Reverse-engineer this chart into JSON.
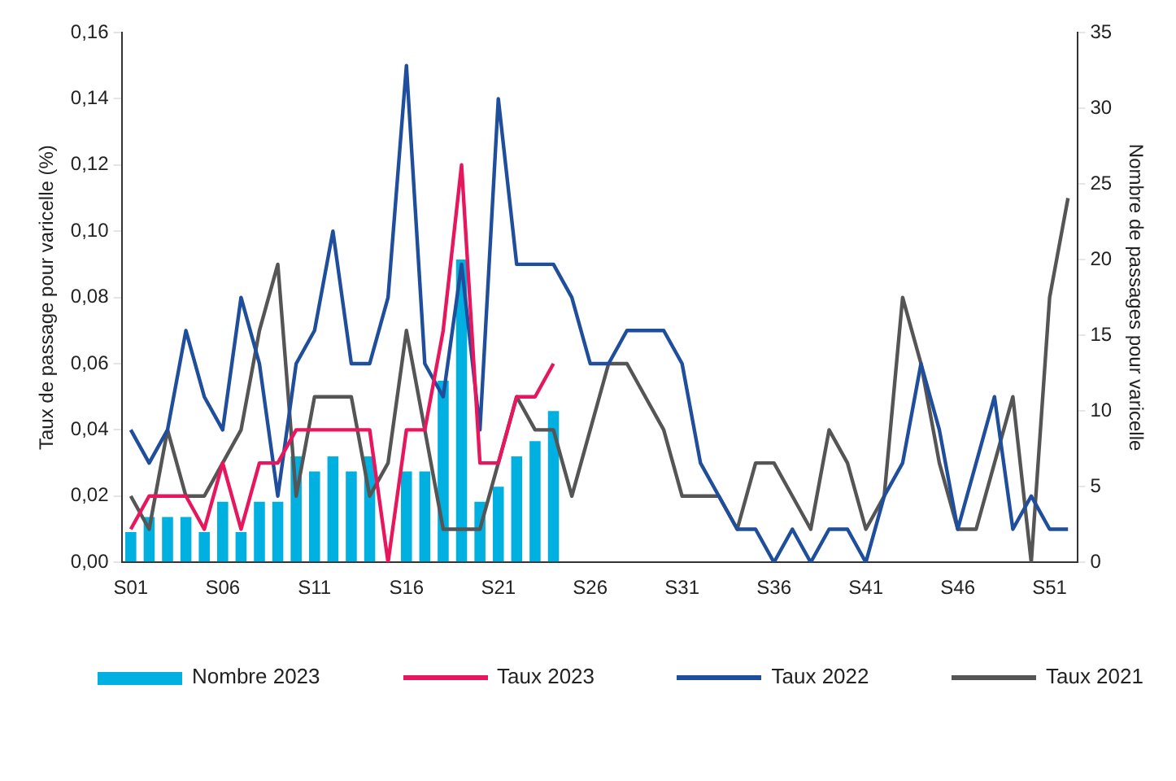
{
  "chart_data": {
    "type": "line",
    "ylabel": "Taux de passage pour varicelle (%)",
    "y2label": "Nombre de passages pour varicelle",
    "categories": [
      "S01",
      null,
      null,
      null,
      null,
      "S06",
      null,
      null,
      null,
      null,
      "S11",
      null,
      null,
      null,
      null,
      "S16",
      null,
      null,
      null,
      null,
      "S21",
      null,
      null,
      null,
      null,
      "S26",
      null,
      null,
      null,
      null,
      "S31",
      null,
      null,
      null,
      null,
      "S36",
      null,
      null,
      null,
      null,
      "S41",
      null,
      null,
      null,
      null,
      "S46",
      null,
      null,
      null,
      null,
      "S51",
      null
    ],
    "series": [
      {
        "name": "Nombre 2023",
        "type": "bar",
        "axis": "y2",
        "color": "#00b0e0",
        "values": [
          2,
          3,
          3,
          3,
          2,
          4,
          2,
          4,
          4,
          7,
          6,
          7,
          6,
          7,
          0,
          6,
          6,
          12,
          20,
          4,
          5,
          7,
          8,
          10,
          null,
          null,
          null,
          null,
          null,
          null,
          null,
          null,
          null,
          null,
          null,
          null,
          null,
          null,
          null,
          null,
          null,
          null,
          null,
          null,
          null,
          null,
          null,
          null,
          null,
          null,
          null,
          null
        ]
      },
      {
        "name": "Taux 2023",
        "color": "#e8175d",
        "values": [
          0.01,
          0.02,
          0.02,
          0.02,
          0.01,
          0.03,
          0.01,
          0.03,
          0.03,
          0.04,
          0.04,
          0.04,
          0.04,
          0.04,
          0.0,
          0.04,
          0.04,
          0.07,
          0.12,
          0.03,
          0.03,
          0.05,
          0.05,
          0.06,
          null,
          null,
          null,
          null,
          null,
          null,
          null,
          null,
          null,
          null,
          null,
          null,
          null,
          null,
          null,
          null,
          null,
          null,
          null,
          null,
          null,
          null,
          null,
          null,
          null,
          null,
          null,
          null
        ]
      },
      {
        "name": "Taux 2022",
        "color": "#1f4e9c",
        "values": [
          0.04,
          0.03,
          0.04,
          0.07,
          0.05,
          0.04,
          0.08,
          0.06,
          0.02,
          0.06,
          0.07,
          0.1,
          0.06,
          0.06,
          0.08,
          0.15,
          0.06,
          0.05,
          0.09,
          0.04,
          0.14,
          0.09,
          0.09,
          0.09,
          0.08,
          0.06,
          0.06,
          0.07,
          0.07,
          0.07,
          0.06,
          0.03,
          0.02,
          0.01,
          0.01,
          0.0,
          0.01,
          0.0,
          0.01,
          0.01,
          0.0,
          0.02,
          0.03,
          0.06,
          0.04,
          0.01,
          0.03,
          0.05,
          0.01,
          0.02,
          0.01,
          0.01
        ]
      },
      {
        "name": "Taux 2021",
        "color": "#555555",
        "values": [
          0.02,
          0.01,
          0.04,
          0.02,
          0.02,
          0.03,
          0.04,
          0.07,
          0.09,
          0.02,
          0.05,
          0.05,
          0.05,
          0.02,
          0.03,
          0.07,
          0.04,
          0.01,
          0.01,
          0.01,
          0.03,
          0.05,
          0.04,
          0.04,
          0.02,
          0.04,
          0.06,
          0.06,
          0.05,
          0.04,
          0.02,
          0.02,
          0.02,
          0.01,
          0.03,
          0.03,
          0.02,
          0.01,
          0.04,
          0.03,
          0.01,
          0.02,
          0.08,
          0.06,
          0.03,
          0.01,
          0.01,
          0.03,
          0.05,
          0.0,
          0.08,
          0.11
        ]
      }
    ],
    "ylim": [
      0,
      0.16
    ],
    "yticks": [
      {
        "value": 0,
        "label": "0,00"
      },
      {
        "value": 0.02,
        "label": "0,02"
      },
      {
        "value": 0.04,
        "label": "0,04"
      },
      {
        "value": 0.06,
        "label": "0,06"
      },
      {
        "value": 0.08,
        "label": "0,08"
      },
      {
        "value": 0.1,
        "label": "0,10"
      },
      {
        "value": 0.12,
        "label": "0,12"
      },
      {
        "value": 0.14,
        "label": "0,14"
      },
      {
        "value": 0.16,
        "label": "0,16"
      }
    ],
    "y2lim": [
      0,
      35
    ],
    "y2ticks": [
      0,
      5,
      10,
      15,
      20,
      25,
      30,
      35
    ],
    "grid": false,
    "legend": "bottom",
    "marker": "none",
    "line_style": "solid"
  }
}
